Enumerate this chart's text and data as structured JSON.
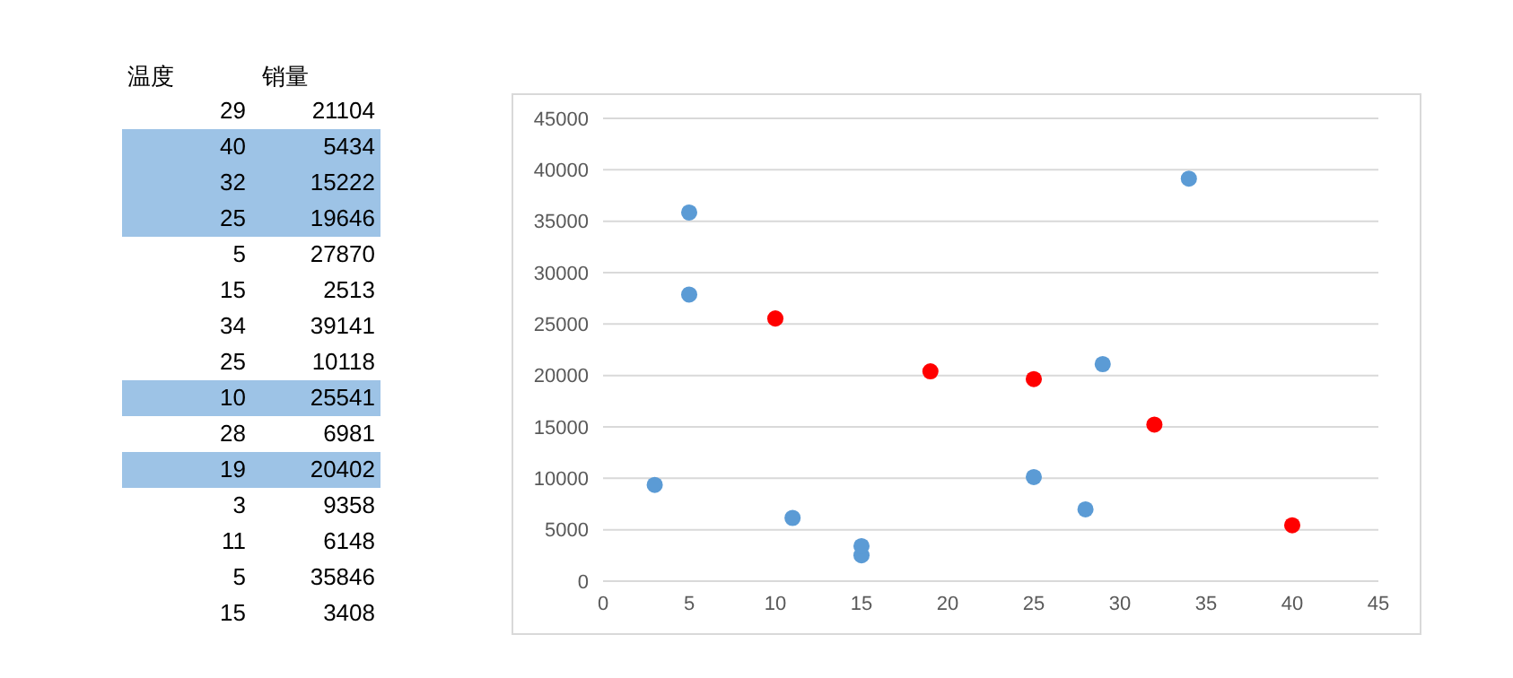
{
  "chart_data": [
    {
      "type": "other",
      "annotations": [
        "温度",
        "销量",
        "29",
        "21104",
        "40",
        "5434",
        "32",
        "15222",
        "25",
        "19646",
        "5",
        "27870",
        "15",
        "2513",
        "34",
        "39141",
        "25",
        "10118",
        "10",
        "25541",
        "28",
        "6981",
        "19",
        "20402",
        "3",
        "9358",
        "11",
        "6148",
        "5",
        "35846",
        "15",
        "3408"
      ],
      "colors": [
        "#ffffff",
        "#9dc3e6",
        "#9dc3e6",
        "#9dc3e6",
        "#ffffff",
        "#ffffff",
        "#ffffff",
        "#ffffff",
        "#9dc3e6",
        "#ffffff",
        "#9dc3e6",
        "#ffffff",
        "#ffffff",
        "#ffffff",
        "#ffffff"
      ]
    },
    {
      "type": "scatter",
      "x": [
        29,
        40,
        32,
        25,
        5,
        15,
        34,
        25,
        10,
        28,
        19,
        3,
        11,
        5,
        15
      ],
      "values": [
        21104,
        5434,
        15222,
        19646,
        27870,
        2513,
        39141,
        10118,
        25541,
        6981,
        20402,
        9358,
        6148,
        35846,
        3408
      ],
      "colors": [
        "#5b9bd5",
        "#ff0000",
        "#ff0000",
        "#ff0000",
        "#5b9bd5",
        "#5b9bd5",
        "#5b9bd5",
        "#5b9bd5",
        "#ff0000",
        "#5b9bd5",
        "#ff0000",
        "#5b9bd5",
        "#5b9bd5",
        "#5b9bd5",
        "#5b9bd5"
      ],
      "xlim": [
        0,
        45
      ],
      "xticks": [
        0,
        5,
        10,
        15,
        20,
        25,
        30,
        35,
        40,
        45
      ],
      "ylim": [
        0,
        45000
      ],
      "yticks": [
        0,
        5000,
        10000,
        15000,
        20000,
        25000,
        30000,
        35000,
        40000,
        45000
      ],
      "grid": "y",
      "marker": "circle"
    }
  ]
}
